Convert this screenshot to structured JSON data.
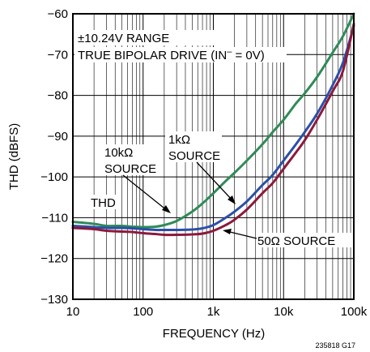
{
  "chart_data": {
    "type": "line",
    "title": "",
    "xlabel": "FREQUENCY (Hz)",
    "ylabel": "THD (dBFS)",
    "x_scale": "log",
    "xlim": [
      10,
      100000
    ],
    "ylim": [
      -130,
      -60
    ],
    "x_ticks": [
      10,
      100,
      1000,
      10000,
      100000
    ],
    "x_tick_labels": [
      "10",
      "100",
      "1k",
      "10k",
      "100k"
    ],
    "y_ticks": [
      -130,
      -120,
      -110,
      -100,
      -90,
      -80,
      -70,
      -60
    ],
    "y_tick_labels": [
      "−130",
      "−120",
      "−110",
      "−100",
      "−90",
      "−80",
      "−70",
      "−60"
    ],
    "grid": true,
    "annotations": {
      "range": "±10.24V RANGE",
      "drive": "TRUE BIPOLAR DRIVE (IN",
      "drive_sup": "–",
      "drive_end": " = 0V)",
      "src10k_line1": "10kΩ",
      "src10k_line2": "SOURCE",
      "src1k_line1": "1kΩ",
      "src1k_line2": "SOURCE",
      "thd": "THD",
      "src50": "50Ω SOURCE"
    },
    "figure_id": "235818 G17",
    "series": [
      {
        "color": "#2e8b57",
        "x": [
          10,
          20,
          30,
          50,
          70,
          100,
          150,
          200,
          300,
          500,
          700,
          1000,
          1500,
          2000,
          3000,
          5000,
          7000,
          10000,
          15000,
          20000,
          30000,
          50000,
          70000,
          100000
        ],
        "y": [
          -111,
          -111.5,
          -112,
          -112,
          -112.2,
          -112.3,
          -112.2,
          -111.8,
          -110.8,
          -108.5,
          -106.5,
          -104,
          -101,
          -99,
          -96,
          -92,
          -89,
          -86,
          -82,
          -79.5,
          -75.5,
          -69.5,
          -65.5,
          -60
        ]
      },
      {
        "color": "#2b4fa8",
        "x": [
          10,
          20,
          30,
          50,
          70,
          100,
          150,
          200,
          300,
          500,
          700,
          1000,
          1500,
          2000,
          3000,
          5000,
          7000,
          10000,
          15000,
          20000,
          30000,
          50000,
          70000,
          100000
        ],
        "y": [
          -112,
          -112.3,
          -112.5,
          -112.5,
          -112.6,
          -112.8,
          -113,
          -113,
          -113,
          -112.9,
          -112.6,
          -111.8,
          -110,
          -108.5,
          -106,
          -102,
          -99.5,
          -96,
          -92,
          -89,
          -84.5,
          -77.5,
          -72,
          -63
        ]
      },
      {
        "color": "#8b1a3c",
        "x": [
          10,
          20,
          30,
          50,
          70,
          100,
          150,
          200,
          300,
          500,
          700,
          1000,
          1500,
          2000,
          3000,
          5000,
          7000,
          10000,
          15000,
          20000,
          30000,
          50000,
          70000,
          100000
        ],
        "y": [
          -112.5,
          -112.8,
          -113.2,
          -113.4,
          -113.5,
          -113.8,
          -114,
          -114.2,
          -114.2,
          -114.1,
          -113.9,
          -113.2,
          -111.8,
          -110.5,
          -108,
          -104,
          -101.5,
          -98,
          -94,
          -91,
          -86,
          -79,
          -74,
          -62.5
        ]
      }
    ]
  }
}
